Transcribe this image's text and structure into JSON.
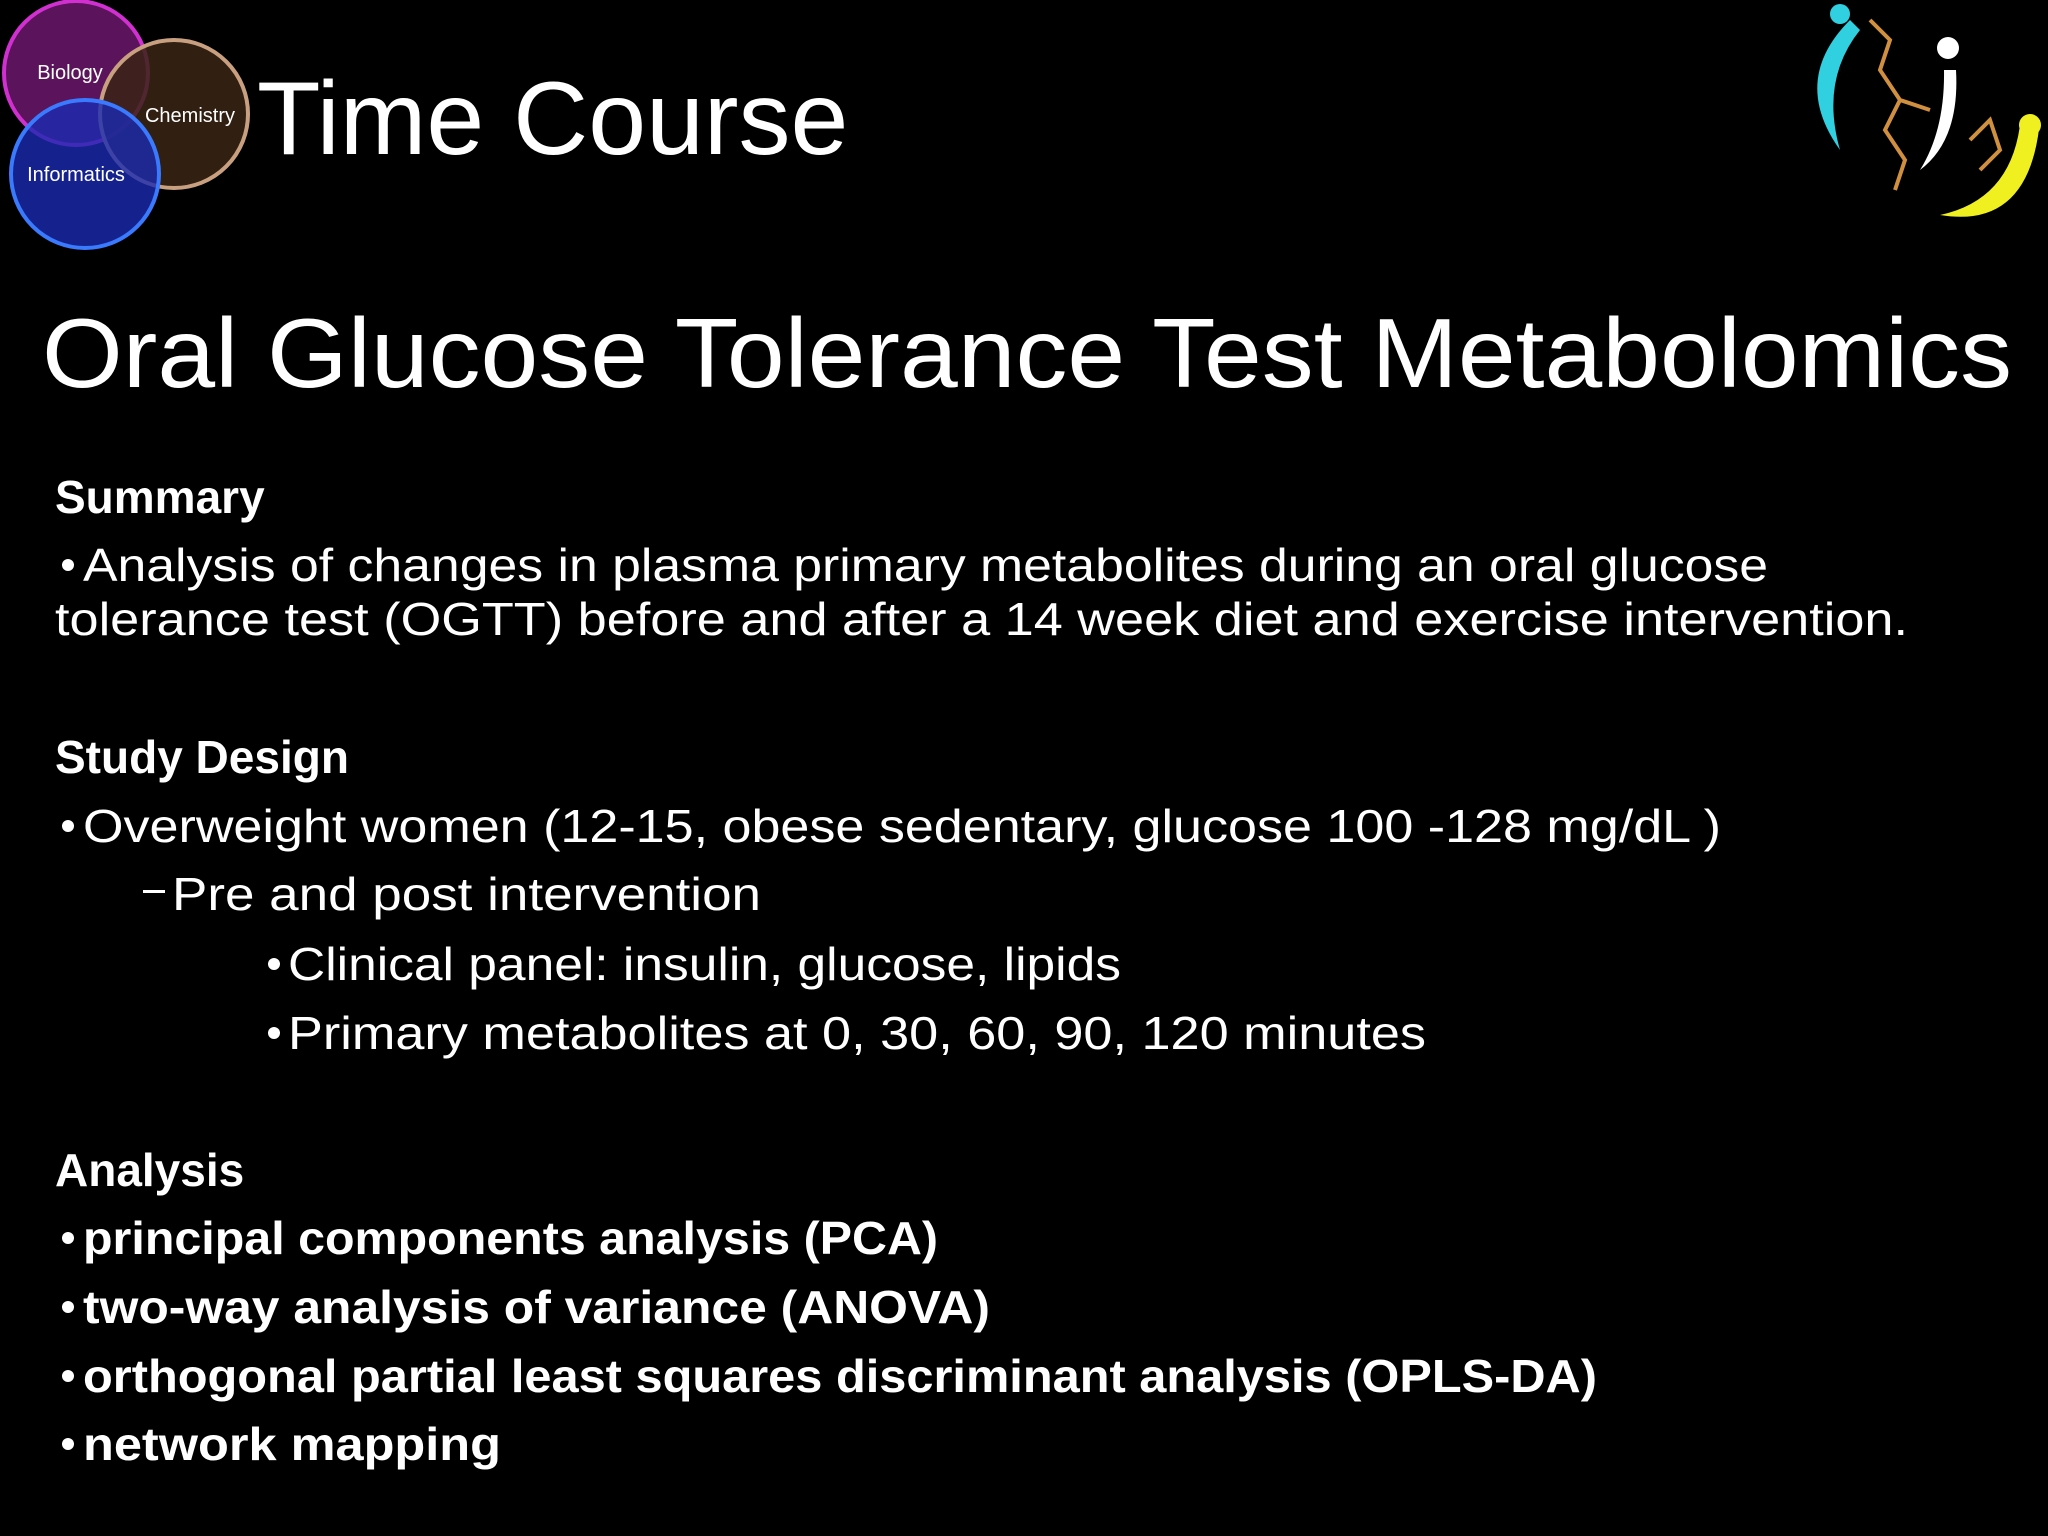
{
  "header": {
    "title": "Time Course",
    "venn": [
      "Biology",
      "Chemistry",
      "Informatics"
    ]
  },
  "subtitle": "Oral Glucose Tolerance Test Metabolomics",
  "sections": [
    {
      "heading": "Summary",
      "items": [
        "Analysis of changes in plasma primary metabolites during an oral glucose",
        "tolerance test (OGTT) before and after a 14 week diet and exercise intervention."
      ]
    },
    {
      "heading": "Study Design",
      "items": [
        "Overweight women (12-15, obese sedentary, glucose 100 -128 mg/dL )",
        "Pre and post intervention",
        "Clinical panel: insulin, glucose, lipids",
        "Primary metabolites at 0, 30, 60, 90, 120 minutes"
      ]
    },
    {
      "heading": "Analysis",
      "items": [
        "principal components analysis (PCA)",
        "two-way analysis of variance (ANOVA)",
        "orthogonal partial least squares discriminant analysis (OPLS-DA)",
        "network mapping"
      ]
    }
  ]
}
